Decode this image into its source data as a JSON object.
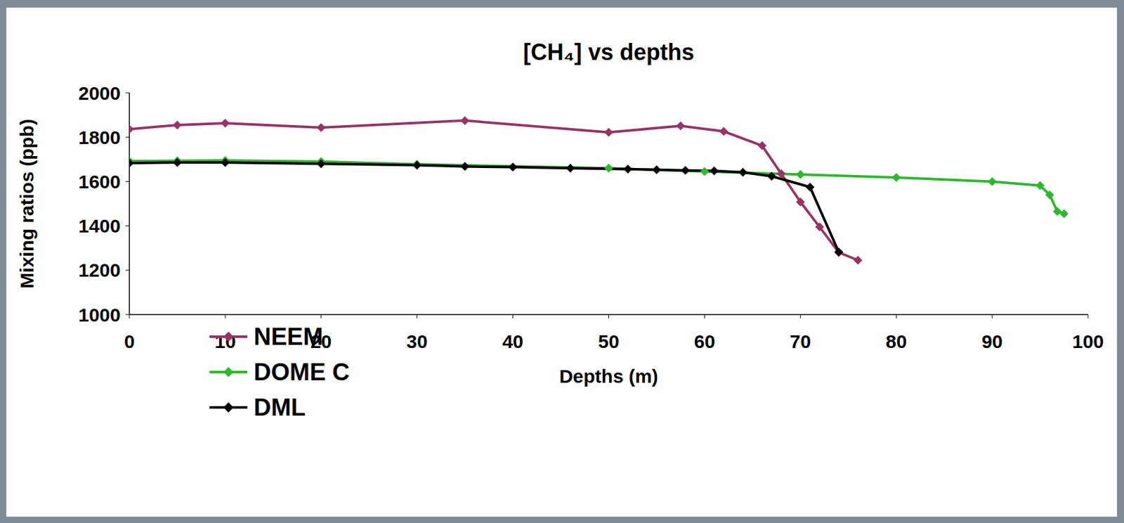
{
  "chart_data": {
    "type": "line",
    "title": "[CH₄] vs depths",
    "x_label": "Depths (m)",
    "y_label": "Mixing ratios (ppb)",
    "xlim": [
      0,
      100
    ],
    "xticks": [
      0,
      10,
      20,
      30,
      40,
      50,
      60,
      70,
      80,
      90,
      100
    ],
    "ylim": [
      1000,
      2000
    ],
    "yticks": [
      1000,
      1200,
      1400,
      1600,
      1800,
      2000
    ],
    "grid": false,
    "legend": "lower left",
    "series": [
      {
        "name": "NEEM",
        "color": "#993366",
        "marker": "diamond",
        "x": [
          0,
          5,
          10,
          20,
          35,
          50,
          57.5,
          62,
          66,
          68,
          70,
          72,
          74,
          76
        ],
        "values": [
          1836,
          1855,
          1863,
          1843,
          1875,
          1822,
          1851,
          1826,
          1762,
          1635,
          1508,
          1395,
          1280,
          1245
        ]
      },
      {
        "name": "DOME C",
        "color": "#2eb82e",
        "marker": "diamond",
        "x": [
          0,
          5,
          10,
          20,
          30,
          50,
          60,
          70,
          80,
          90,
          95,
          96,
          96.8,
          97.5
        ],
        "values": [
          1692,
          1694,
          1695,
          1690,
          1678,
          1660,
          1645,
          1632,
          1618,
          1600,
          1582,
          1540,
          1465,
          1455
        ]
      },
      {
        "name": "DML",
        "color": "#000000",
        "marker": "diamond",
        "x": [
          0,
          5,
          10,
          20,
          30,
          35,
          40,
          46,
          52,
          55,
          58,
          61,
          64,
          67,
          71,
          74
        ],
        "values": [
          1683,
          1686,
          1686,
          1680,
          1674,
          1668,
          1665,
          1660,
          1656,
          1653,
          1650,
          1648,
          1642,
          1624,
          1575,
          1282
        ]
      }
    ]
  }
}
